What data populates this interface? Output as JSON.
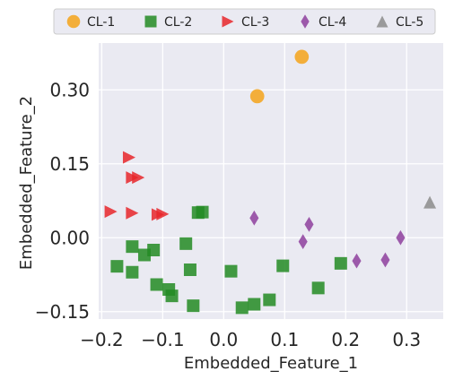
{
  "chart_data": {
    "type": "scatter",
    "title": "",
    "xlabel": "Embedded_Feature_1",
    "ylabel": "Embedded_Feature_2",
    "xlim": [
      -0.205,
      0.36
    ],
    "ylim": [
      -0.165,
      0.395
    ],
    "x_ticks": [
      -0.2,
      -0.1,
      0.0,
      0.1,
      0.2,
      0.3
    ],
    "x_tick_labels": [
      "−0.2",
      "−0.1",
      "0.0",
      "0.1",
      "0.2",
      "0.3"
    ],
    "y_ticks": [
      -0.15,
      0.0,
      0.15,
      0.3
    ],
    "y_tick_labels": [
      "−0.15",
      "0.00",
      "0.15",
      "0.30"
    ],
    "grid": true,
    "legend_position": "top",
    "series": [
      {
        "name": "CL-1",
        "marker": "circle",
        "color": "#F5A31A",
        "points": [
          [
            0.128,
            0.367
          ],
          [
            0.055,
            0.287
          ]
        ]
      },
      {
        "name": "CL-2",
        "marker": "square",
        "color": "#238B23",
        "points": [
          [
            -0.035,
            0.052
          ],
          [
            -0.042,
            0.051
          ],
          [
            -0.15,
            -0.018
          ],
          [
            -0.175,
            -0.058
          ],
          [
            -0.15,
            -0.07
          ],
          [
            -0.13,
            -0.035
          ],
          [
            -0.115,
            -0.025
          ],
          [
            -0.11,
            -0.095
          ],
          [
            -0.09,
            -0.105
          ],
          [
            -0.085,
            -0.118
          ],
          [
            -0.062,
            -0.012
          ],
          [
            -0.055,
            -0.065
          ],
          [
            -0.05,
            -0.138
          ],
          [
            0.012,
            -0.068
          ],
          [
            0.03,
            -0.142
          ],
          [
            0.05,
            -0.135
          ],
          [
            0.075,
            -0.126
          ],
          [
            0.097,
            -0.057
          ],
          [
            0.155,
            -0.102
          ],
          [
            0.192,
            -0.052
          ]
        ]
      },
      {
        "name": "CL-3",
        "marker": "triangle-right",
        "color": "#E8262A",
        "points": [
          [
            -0.155,
            0.163
          ],
          [
            -0.15,
            0.122
          ],
          [
            -0.14,
            0.122
          ],
          [
            -0.185,
            0.053
          ],
          [
            -0.15,
            0.05
          ],
          [
            -0.108,
            0.047
          ],
          [
            -0.1,
            0.048
          ]
        ]
      },
      {
        "name": "CL-4",
        "marker": "thin-diamond",
        "color": "#8E3F9E",
        "points": [
          [
            0.05,
            0.04
          ],
          [
            0.14,
            0.027
          ],
          [
            0.13,
            -0.008
          ],
          [
            0.218,
            -0.047
          ],
          [
            0.265,
            -0.045
          ],
          [
            0.29,
            0.0
          ]
        ]
      },
      {
        "name": "CL-5",
        "marker": "triangle-up",
        "color": "#8C8C8C",
        "points": [
          [
            0.338,
            0.072
          ]
        ]
      }
    ]
  }
}
